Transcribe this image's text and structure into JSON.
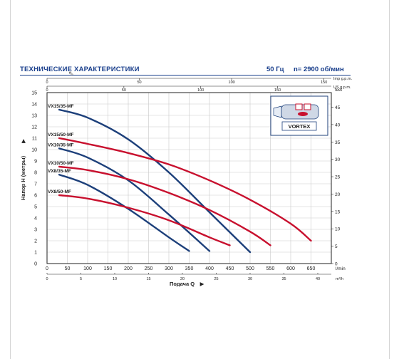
{
  "header": {
    "title": "ТЕХНИЧЕСКИЕ ХАРАКТЕРИСТИКИ",
    "frequency": "50 Гц",
    "speed": "n= 2900 об/мин"
  },
  "colors": {
    "red_series": "#c8102e",
    "blue_series": "#1c3f7a",
    "axis": "#222222",
    "grid": "#c9c9c9"
  },
  "inset": {
    "label": "VORTEX"
  },
  "chart_data": {
    "type": "line",
    "xlabel": "Подача Q",
    "ylabel": "Напор H (метры)",
    "x_unit": "l/min",
    "x_unit_m3h": "m³/h",
    "y_right_unit": "feet",
    "x_top_imp_unit": "Imp g.p.m.",
    "x_top_us_unit": "US g.p.m.",
    "xlim": [
      0,
      700
    ],
    "ylim": [
      0,
      15
    ],
    "grid": true,
    "x_ticks": [
      0,
      50,
      100,
      150,
      200,
      250,
      300,
      350,
      400,
      450,
      500,
      550,
      600,
      650
    ],
    "y_ticks": [
      0,
      1,
      2,
      3,
      4,
      5,
      6,
      7,
      8,
      9,
      10,
      11,
      12,
      13,
      14,
      15
    ],
    "feet_ticks": [
      0,
      5,
      10,
      15,
      20,
      25,
      30,
      35,
      40,
      45
    ],
    "m3h_ticks": [
      0,
      5,
      10,
      15,
      20,
      25,
      30,
      35,
      40
    ],
    "imp_ticks": [
      0,
      50,
      100,
      150
    ],
    "us_ticks": [
      0,
      50,
      100,
      150
    ],
    "series": [
      {
        "name": "VX15/35-MF",
        "color": "blue",
        "x": [
          30,
          100,
          200,
          300,
          400,
          500
        ],
        "y": [
          13.5,
          12.8,
          10.9,
          8.0,
          4.5,
          1.0
        ]
      },
      {
        "name": "VX15/50-MF",
        "color": "red",
        "x": [
          30,
          100,
          200,
          300,
          400,
          500,
          600,
          650
        ],
        "y": [
          11.0,
          10.5,
          9.7,
          8.7,
          7.3,
          5.6,
          3.5,
          2.0
        ]
      },
      {
        "name": "VX10/35-MF",
        "color": "blue",
        "x": [
          30,
          100,
          200,
          300,
          400
        ],
        "y": [
          10.1,
          9.3,
          7.3,
          4.3,
          1.1
        ]
      },
      {
        "name": "VX10/50-MF",
        "color": "red",
        "x": [
          30,
          100,
          200,
          300,
          400,
          500,
          550
        ],
        "y": [
          8.5,
          8.2,
          7.4,
          6.2,
          4.7,
          2.8,
          1.6
        ]
      },
      {
        "name": "VX8/35-MF",
        "color": "blue",
        "x": [
          30,
          100,
          200,
          300,
          350
        ],
        "y": [
          7.8,
          6.9,
          4.8,
          2.3,
          1.1
        ]
      },
      {
        "name": "VX8/50-MF",
        "color": "red",
        "x": [
          30,
          100,
          200,
          300,
          400,
          450
        ],
        "y": [
          6.0,
          5.7,
          4.9,
          3.8,
          2.3,
          1.6
        ]
      }
    ]
  }
}
